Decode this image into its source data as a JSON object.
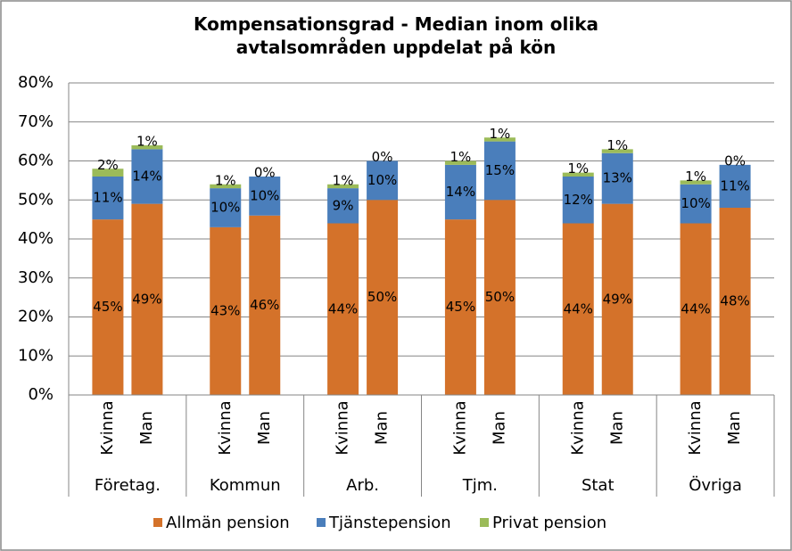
{
  "chart_data": {
    "type": "stacked_bar",
    "title": "Kompensationsgrad - Median inom olika avtalsområden uppdelat på kön",
    "categories": [
      "Kvinna",
      "Man",
      "Kvinna",
      "Man",
      "Kvinna",
      "Man",
      "Kvinna",
      "Man",
      "Kvinna",
      "Man",
      "Kvinna",
      "Man"
    ],
    "groups": [
      "Företag.",
      "Kommun",
      "Arb.",
      "Tjm.",
      "Stat",
      "Övriga"
    ],
    "series": [
      {
        "name": "Allmän pension",
        "color": "#d4722a",
        "values": [
          45,
          49,
          43,
          46,
          44,
          50,
          45,
          50,
          44,
          49,
          44,
          48
        ],
        "value_labels": [
          "45%",
          "49%",
          "43%",
          "46%",
          "44%",
          "50%",
          "45%",
          "50%",
          "44%",
          "49%",
          "44%",
          "48%"
        ]
      },
      {
        "name": "Tjänstepension",
        "color": "#4a7ebb",
        "values": [
          11,
          14,
          10,
          10,
          9,
          10,
          14,
          15,
          12,
          13,
          10,
          11
        ],
        "value_labels": [
          "11%",
          "14%",
          "10%",
          "10%",
          "9%",
          "10%",
          "14%",
          "15%",
          "12%",
          "13%",
          "10%",
          "11%"
        ]
      },
      {
        "name": "Privat pension",
        "color": "#9bbb59",
        "values": [
          2,
          1,
          1,
          0,
          1,
          0,
          1,
          1,
          1,
          1,
          1,
          0
        ],
        "value_labels": [
          "2%",
          "1%",
          "1%",
          "0%",
          "1%",
          "0%",
          "1%",
          "1%",
          "1%",
          "1%",
          "1%",
          "0%"
        ]
      }
    ],
    "ylim": [
      0,
      80
    ],
    "yticks": [
      {
        "value": 0,
        "label": "0%"
      },
      {
        "value": 10,
        "label": "10%"
      },
      {
        "value": 20,
        "label": "20%"
      },
      {
        "value": 30,
        "label": "30%"
      },
      {
        "value": 40,
        "label": "40%"
      },
      {
        "value": 50,
        "label": "50%"
      },
      {
        "value": 60,
        "label": "60%"
      },
      {
        "value": 70,
        "label": "70%"
      },
      {
        "value": 80,
        "label": "80%"
      }
    ],
    "grid": true,
    "legend": "bottom"
  }
}
